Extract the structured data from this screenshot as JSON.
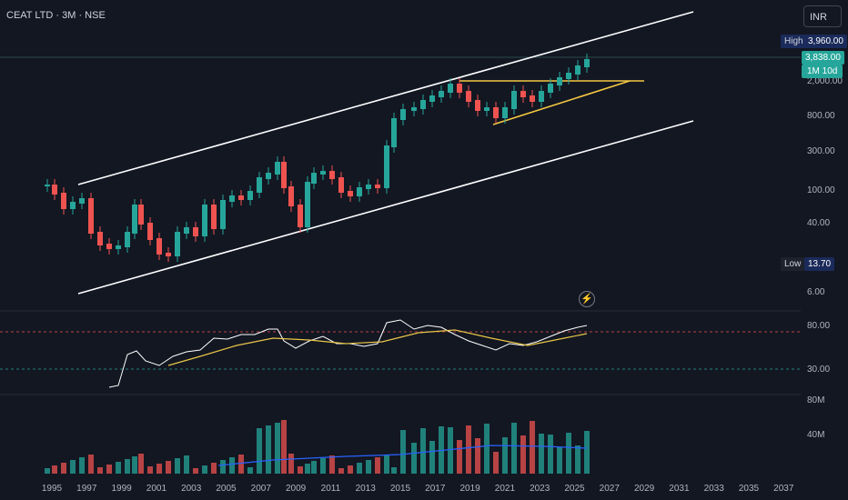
{
  "header": {
    "title": "CEAT LTD · 3M · NSE",
    "currency_button": "INR"
  },
  "price_axis": {
    "labels": [
      "2,000.00",
      "800.00",
      "300.00",
      "100.00",
      "40.00",
      "6.00"
    ],
    "current_price": "3,838.00",
    "countdown": "1M 10d",
    "high_label": "High",
    "high_value": "3,960.00",
    "low_label": "Low",
    "low_value": "13.70"
  },
  "rsi_axis": {
    "labels": [
      "80.00",
      "30.00"
    ]
  },
  "volume_axis": {
    "labels": [
      "80M",
      "40M"
    ]
  },
  "time_axis": {
    "years": [
      "1995",
      "1997",
      "1999",
      "2001",
      "2003",
      "2005",
      "2007",
      "2009",
      "2011",
      "2013",
      "2015",
      "2017",
      "2019",
      "2021",
      "2023",
      "2025",
      "2027",
      "2029",
      "2031",
      "2033",
      "2035",
      "2037"
    ]
  },
  "colors": {
    "up": "#26a69a",
    "down": "#ef5350",
    "channel": "#ffffff",
    "triangle": "#f5c842",
    "rsi": "#ffffff",
    "rsi_ma": "#e8c547",
    "vol_ma": "#2962ff",
    "bg": "#131722"
  },
  "chart_data": {
    "type": "candlestick",
    "scale": "log",
    "x_range": [
      "1995",
      "2037"
    ],
    "y_range_approx": [
      6,
      3960
    ],
    "current": 3838,
    "period_high": 3960,
    "period_low": 13.7,
    "rsi_levels": [
      80,
      30
    ]
  },
  "icons": {
    "replay": "lightning-icon"
  }
}
